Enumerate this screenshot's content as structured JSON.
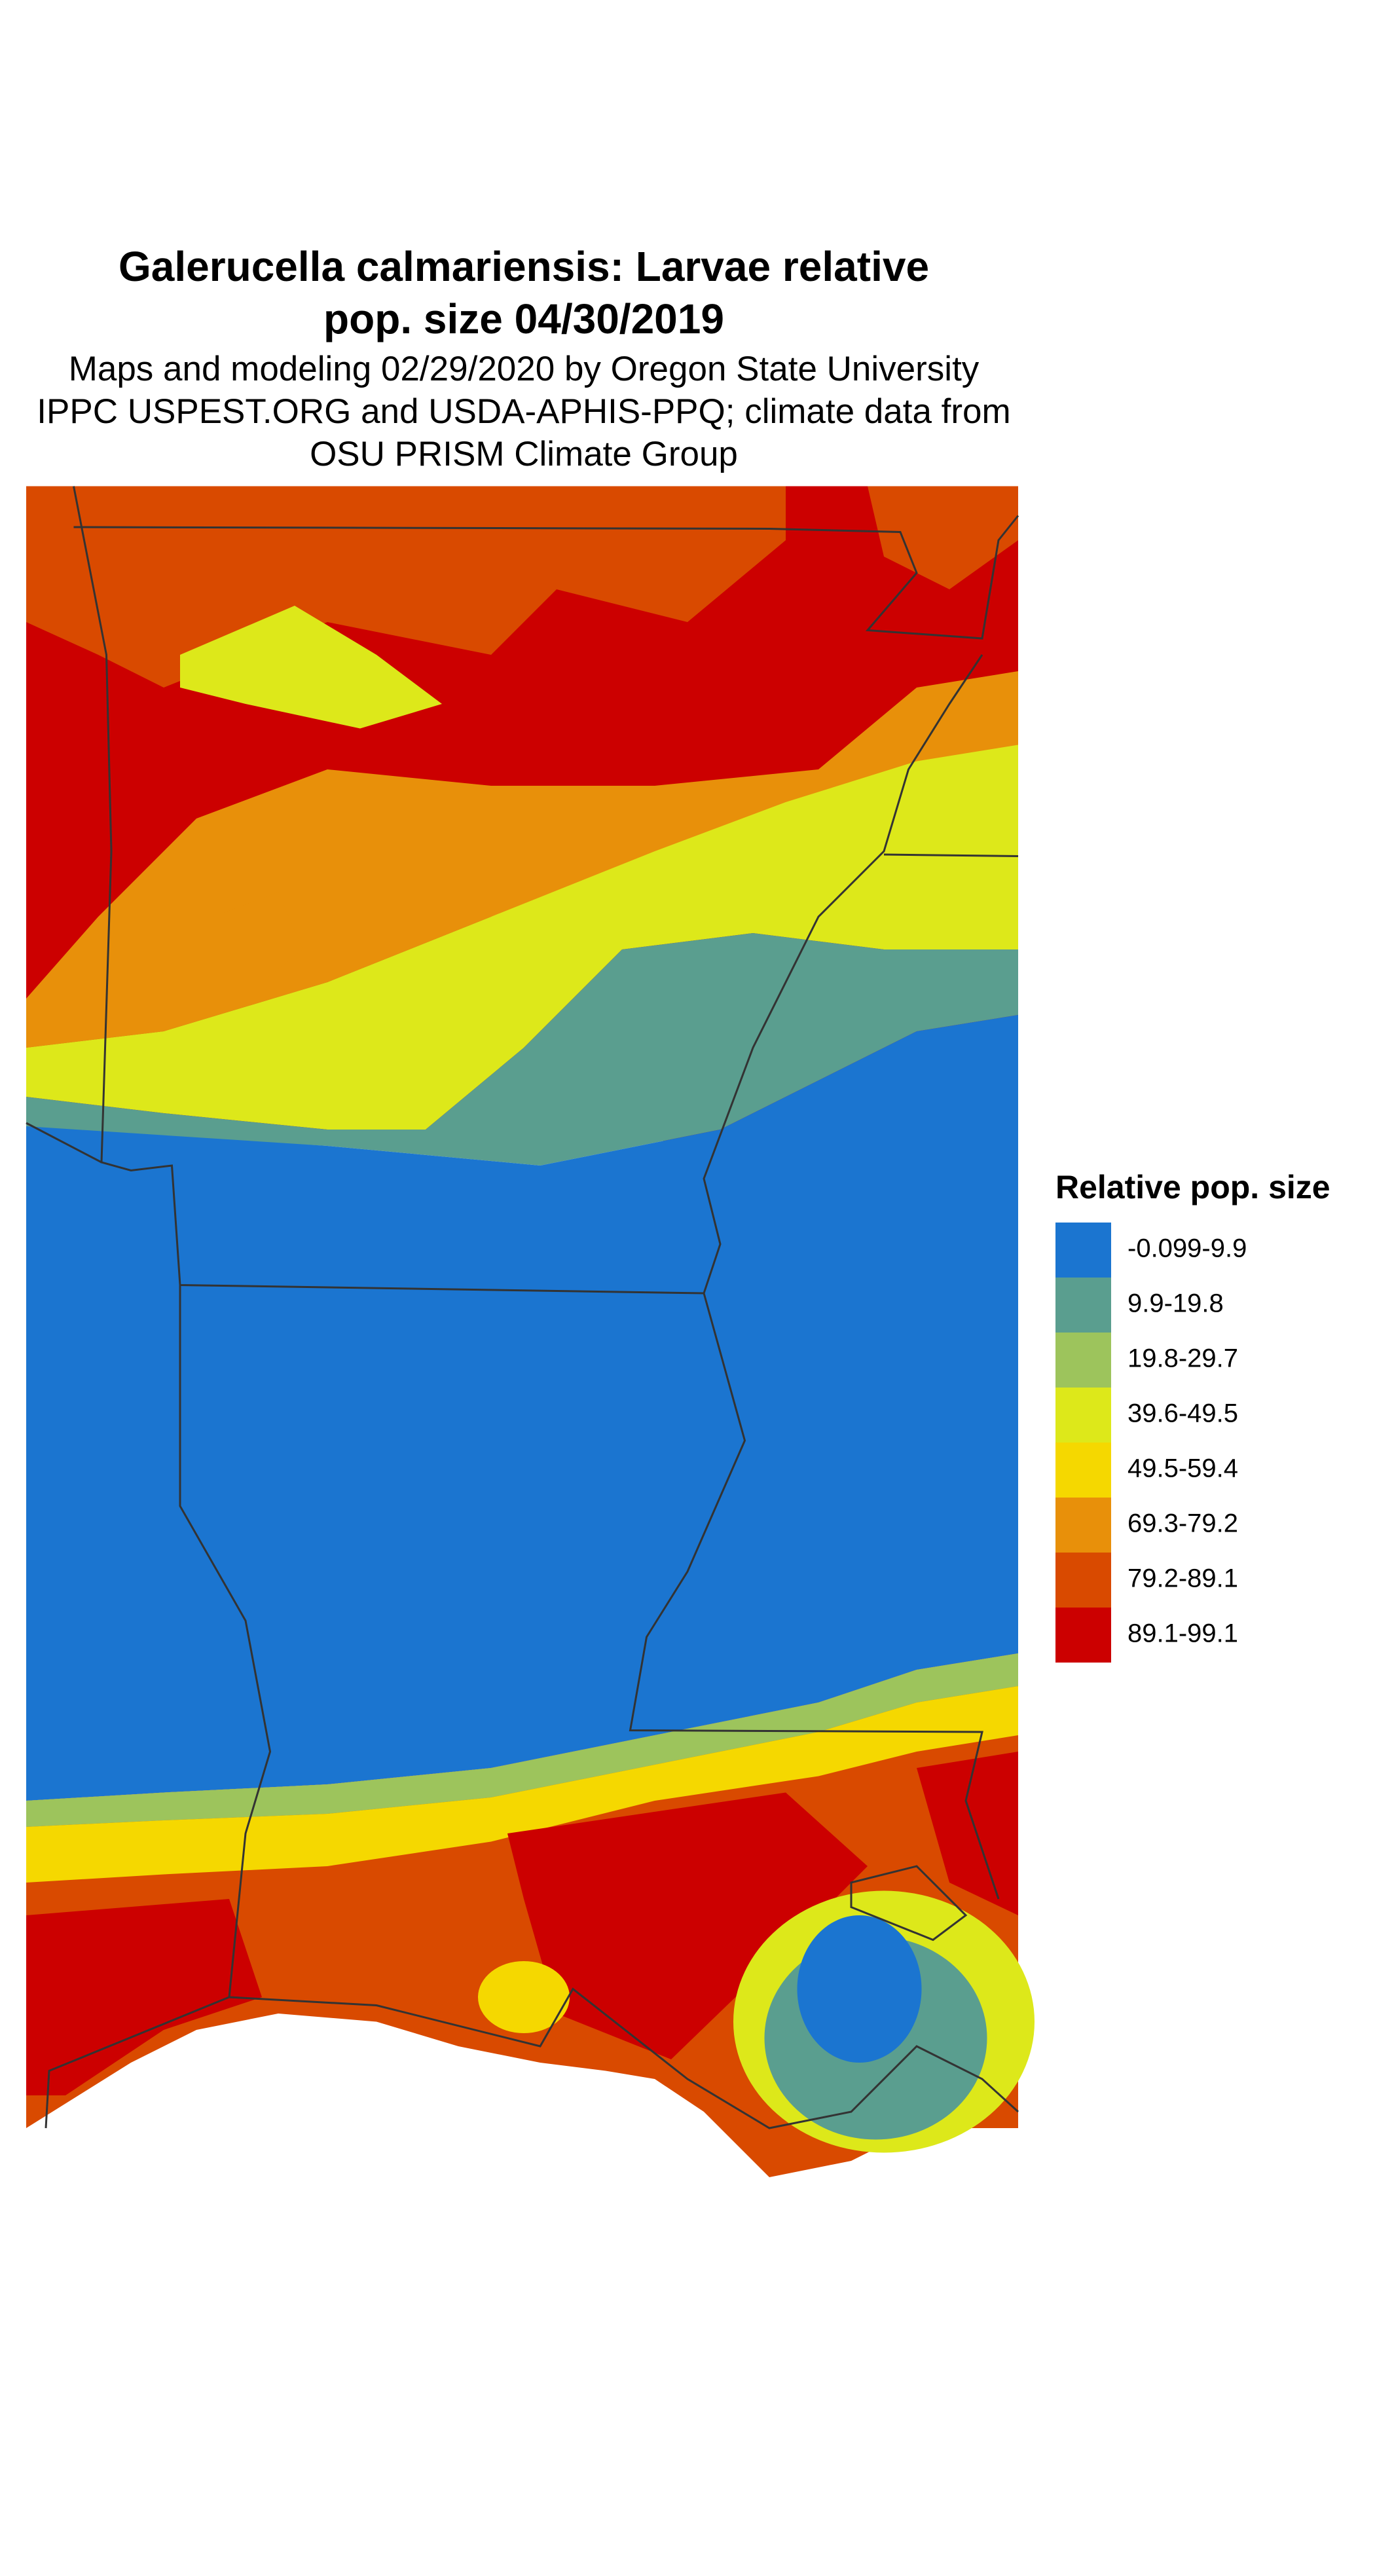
{
  "title": [
    "Galerucella calmariensis: Larvae relative",
    "pop. size 04/30/2019"
  ],
  "subtitle": [
    "Maps and modeling 02/29/2020 by Oregon State University",
    "IPPC USPEST.ORG and USDA-APHIS-PPQ; climate data from",
    "OSU PRISM Climate Group"
  ],
  "legend": {
    "title": "Relative pop. size",
    "items": [
      {
        "label": "-0.099-9.9",
        "color": "#1b75d0"
      },
      {
        "label": "9.9-19.8",
        "color": "#5a9e8f"
      },
      {
        "label": "19.8-29.7",
        "color": "#9dc45c"
      },
      {
        "label": "39.6-49.5",
        "color": "#dde81a"
      },
      {
        "label": "49.5-59.4",
        "color": "#f5d800"
      },
      {
        "label": "69.3-79.2",
        "color": "#e8900a"
      },
      {
        "label": "79.2-89.1",
        "color": "#d94a00"
      },
      {
        "label": "89.1-99.1",
        "color": "#cc0000"
      }
    ]
  }
}
